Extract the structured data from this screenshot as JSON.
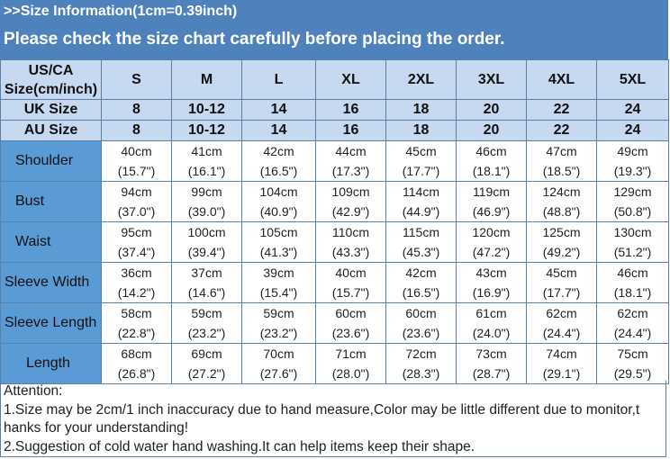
{
  "banner": {
    "line1": ">>Size Information(1cm=0.39inch)",
    "line2": "Please check the size chart carefully before placing the order."
  },
  "table": {
    "header": {
      "label_line1": "US/CA",
      "label_line2": "Size(cm/inch)",
      "sizes": [
        "S",
        "M",
        "L",
        "XL",
        "2XL",
        "3XL",
        "4XL",
        "5XL"
      ]
    },
    "uk": {
      "label": "UK Size",
      "values": [
        "8",
        "10-12",
        "14",
        "16",
        "18",
        "20",
        "22",
        "24"
      ]
    },
    "au": {
      "label": "AU Size",
      "values": [
        "8",
        "10-12",
        "14",
        "16",
        "18",
        "20",
        "22",
        "24"
      ]
    },
    "rows": [
      {
        "label": "Shoulder",
        "indent": "  ",
        "cm": [
          "40cm",
          "41cm",
          "42cm",
          "44cm",
          "45cm",
          "46cm",
          "47cm",
          "49cm"
        ],
        "inch": [
          "(15.7\")",
          "(16.1\")",
          "(16.5\")",
          "(17.3\")",
          "(17.7\")",
          "(18.1\")",
          "(18.5\")",
          "(19.3\")"
        ]
      },
      {
        "label": "Bust",
        "indent": "  ",
        "cm": [
          "94cm",
          "99cm",
          "104cm",
          "109cm",
          "114cm",
          "119cm",
          "124cm",
          "129cm"
        ],
        "inch": [
          "(37.0\")",
          "(39.0\")",
          "(40.9\")",
          "(42.9\")",
          "(44.9\")",
          "(46.9\")",
          "(48.8\")",
          "(50.8\")"
        ]
      },
      {
        "label": "Waist",
        "indent": "  ",
        "cm": [
          "95cm",
          "100cm",
          "105cm",
          "110cm",
          "115cm",
          "120cm",
          "125cm",
          "130cm"
        ],
        "inch": [
          "(37.4\")",
          "(39.4\")",
          "(41.3\")",
          "(43.3\")",
          "(45.3\")",
          "(47.2\")",
          "(49.2\")",
          "(51.2\")"
        ]
      },
      {
        "label": "Sleeve Width",
        "indent": "",
        "cm": [
          "36cm",
          "37cm",
          "39cm",
          "40cm",
          "42cm",
          "43cm",
          "45cm",
          "46cm"
        ],
        "inch": [
          "(14.2\")",
          "(14.6\")",
          "(15.4\")",
          "(15.7\")",
          "(16.5\")",
          "(16.9\")",
          "(17.7\")",
          "(18.1\")"
        ]
      },
      {
        "label": "Sleeve Length",
        "indent": "",
        "cm": [
          "58cm",
          "59cm",
          "59cm",
          "60cm",
          "60cm",
          "61cm",
          "62cm",
          "62cm"
        ],
        "inch": [
          "(22.8\")",
          "(23.2\")",
          "(23.2\")",
          "(23.6\")",
          "(23.6\")",
          "(24.0\")",
          "(24.4\")",
          "(24.4\")"
        ]
      },
      {
        "label": "Length",
        "indent": "    ",
        "cm": [
          "68cm",
          "69cm",
          "70cm",
          "71cm",
          "72cm",
          "73cm",
          "74cm",
          "75cm"
        ],
        "inch": [
          "(26.8\")",
          "(27.2\")",
          "(27.6\")",
          "(28.0\")",
          "(28.3\")",
          "(28.7\")",
          "(29.1\")",
          "(29.5\")"
        ]
      }
    ]
  },
  "notes": {
    "title": "Attention:",
    "line1a": "1.Size may be 2cm/1 inch inaccuracy due to hand measure,Color may be little different due to monitor,t",
    "line1b": "hanks for your understanding!",
    "line2": "2.Suggestion of cold water hand washing.It can help items keep their shape."
  },
  "colors": {
    "banner_bg": "#4f81bd",
    "header_bg": "#c6d9f1",
    "rowlabel_bg": "#5b9bd5",
    "border": "#5b80a8"
  }
}
